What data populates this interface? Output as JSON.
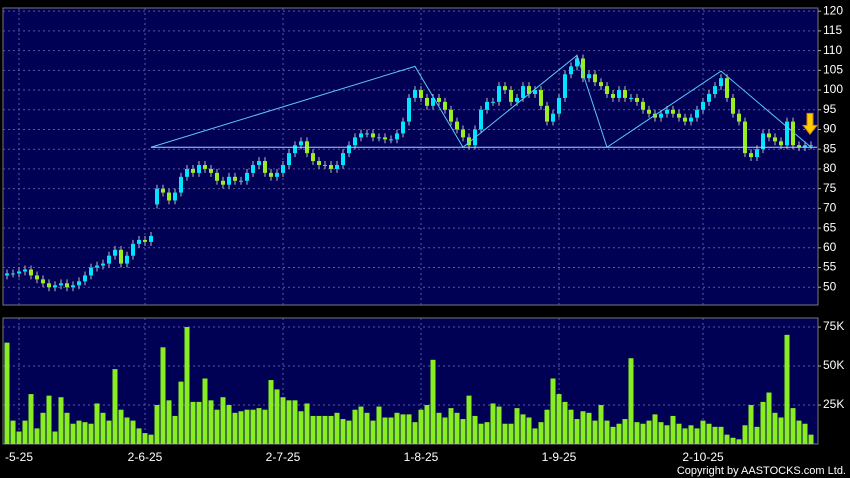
{
  "chart_data": [
    {
      "type": "candlestick",
      "open": [
        53,
        53.5,
        53.5,
        54,
        54.5,
        53,
        52,
        51,
        50,
        50.5,
        51,
        50,
        50.5,
        51.5,
        53,
        55,
        55.5,
        56,
        58,
        59.5,
        56,
        58,
        61,
        62,
        61.5,
        71,
        75,
        74,
        72,
        74,
        78,
        80,
        79,
        81,
        80,
        79,
        77,
        76,
        78,
        77,
        77,
        79,
        81,
        82,
        79,
        78,
        79,
        81,
        84,
        86,
        87,
        84,
        82,
        81,
        81,
        80,
        81,
        84,
        86,
        88,
        89,
        89,
        88,
        88,
        87.5,
        87.5,
        89,
        92,
        98,
        100,
        98,
        96,
        98,
        97,
        95,
        92,
        90,
        88,
        86,
        90,
        95,
        97,
        97,
        101,
        100,
        97,
        98,
        101,
        99,
        100,
        96,
        92,
        94,
        98,
        104,
        106,
        108,
        103,
        104,
        102,
        101,
        99,
        98,
        100,
        98,
        98,
        97,
        95,
        94,
        93,
        94,
        95,
        94,
        93,
        92,
        93,
        95,
        97,
        99,
        101,
        103,
        98,
        94,
        92,
        84,
        83,
        85,
        89,
        88,
        87,
        86,
        92,
        86,
        85.5,
        86
      ],
      "high": [
        54.5,
        54.5,
        55,
        55.5,
        55.5,
        54,
        53,
        52,
        51.5,
        52,
        52,
        51.5,
        52.5,
        54,
        56,
        56.5,
        57,
        59,
        60.5,
        60.5,
        59,
        62,
        63,
        63,
        64,
        76,
        76,
        75,
        75,
        79,
        81,
        81,
        82,
        82,
        81,
        80,
        78,
        79,
        79,
        78,
        80,
        82,
        83,
        83,
        80,
        80,
        82,
        85,
        87,
        88,
        88,
        85,
        83,
        82,
        82,
        82,
        85,
        87,
        89,
        90,
        90,
        90,
        89,
        89,
        88.5,
        90,
        93,
        99,
        101,
        101,
        99,
        99,
        99,
        98,
        96,
        93,
        91,
        89,
        91,
        96,
        98,
        98,
        102,
        102,
        101,
        99,
        102,
        102,
        101,
        101,
        97,
        95,
        99,
        105,
        107,
        109,
        109,
        105,
        105,
        103,
        102,
        100,
        101,
        101,
        99,
        99,
        98,
        96,
        95,
        95,
        96,
        96,
        95,
        94,
        94,
        96,
        98,
        100,
        102,
        104,
        104,
        99,
        95,
        93,
        85,
        86,
        90,
        90,
        89,
        88,
        93,
        93,
        87,
        87,
        87
      ],
      "low": [
        52,
        52.5,
        52.5,
        53,
        52,
        51,
        50,
        49,
        49,
        49.5,
        49,
        49,
        49.5,
        50.5,
        52,
        54,
        54.5,
        55,
        57,
        55,
        55,
        57,
        60,
        60.5,
        60.5,
        70,
        73,
        71,
        71,
        73,
        77,
        78,
        78,
        79,
        78,
        76,
        75,
        75,
        76,
        76,
        76,
        78,
        80,
        78,
        77,
        77,
        78,
        80,
        83,
        85,
        83,
        81,
        80,
        80,
        79,
        79,
        80,
        83,
        85,
        87,
        88,
        87,
        87,
        86.5,
        86.5,
        86.5,
        88,
        91,
        97,
        97,
        95,
        95,
        96,
        94,
        91,
        89,
        87,
        85,
        85,
        89,
        94,
        96,
        96,
        99,
        96,
        96,
        97,
        98,
        98,
        95,
        91,
        91,
        93,
        97,
        103,
        105,
        102,
        102,
        101,
        100,
        98,
        97,
        97,
        97,
        97,
        96,
        94,
        93,
        92,
        92,
        93,
        93,
        92,
        91,
        91,
        92,
        94,
        96,
        98,
        100,
        97,
        93,
        91,
        83,
        82,
        82,
        84,
        87,
        86,
        85,
        85,
        85,
        84.5,
        84.5,
        85
      ],
      "close": [
        53.5,
        53.5,
        54,
        54.5,
        53,
        52,
        51,
        50,
        50.5,
        51,
        50,
        50.5,
        51.5,
        53,
        55,
        55.5,
        56,
        58,
        59.5,
        56,
        58,
        61,
        62,
        61.5,
        63,
        75,
        74,
        72,
        74,
        78,
        80,
        79,
        81,
        80,
        79,
        77,
        76,
        78,
        77,
        77,
        79,
        81,
        82,
        79,
        78,
        79,
        81,
        84,
        86,
        87,
        84,
        82,
        81,
        81,
        80,
        81,
        84,
        86,
        88,
        89,
        89,
        88,
        88,
        87.5,
        87.5,
        89,
        92,
        98,
        100,
        98,
        96,
        98,
        97,
        95,
        92,
        90,
        88,
        86,
        90,
        95,
        97,
        97,
        101,
        100,
        97,
        98,
        101,
        99,
        100,
        96,
        92,
        94,
        98,
        104,
        106,
        108,
        103,
        104,
        102,
        101,
        99,
        98,
        100,
        98,
        98,
        97,
        95,
        94,
        93,
        94,
        95,
        94,
        93,
        92,
        93,
        95,
        97,
        99,
        101,
        103,
        98,
        94,
        92,
        84,
        83,
        85,
        89,
        88,
        87,
        86,
        92,
        86,
        85.5,
        86,
        86
      ],
      "up_color": "#00e5ff",
      "down_color": "#99ee22",
      "ylim": [
        45.5,
        120.8
      ],
      "yticks": [
        50,
        55,
        60,
        65,
        70,
        75,
        80,
        85,
        90,
        95,
        100,
        105,
        110,
        115,
        120
      ],
      "grid": true,
      "trendlines": [
        {
          "color": "#5bc8f5",
          "x": [
            24,
            68,
            76,
            95,
            100,
            119,
            134
          ],
          "y": [
            85.5,
            106,
            85.5,
            108.8,
            85.5,
            104.8,
            85.5
          ]
        },
        {
          "color": "#9fdcff",
          "x": [
            24,
            135
          ],
          "y": [
            85.5,
            85.5
          ]
        }
      ]
    },
    {
      "type": "bar",
      "categories": [
        null,
        null,
        "-5-25",
        null,
        null,
        null,
        null,
        null,
        null,
        null,
        null,
        null,
        null,
        null,
        null,
        null,
        null,
        null,
        null,
        null,
        null,
        null,
        null,
        "2-6-25",
        null,
        null,
        null,
        null,
        null,
        null,
        null,
        null,
        null,
        null,
        null,
        null,
        null,
        null,
        null,
        null,
        null,
        null,
        null,
        null,
        null,
        null,
        "2-7-25",
        null,
        null,
        null,
        null,
        null,
        null,
        null,
        null,
        null,
        null,
        null,
        null,
        null,
        null,
        null,
        null,
        null,
        null,
        null,
        null,
        null,
        null,
        "1-8-25",
        null,
        null,
        null,
        null,
        null,
        null,
        null,
        null,
        null,
        null,
        null,
        null,
        null,
        null,
        null,
        null,
        null,
        null,
        null,
        null,
        null,
        null,
        "1-9-25",
        null,
        null,
        null,
        null,
        null,
        null,
        null,
        null,
        null,
        null,
        null,
        null,
        null,
        null,
        null,
        null,
        null,
        null,
        null,
        null,
        null,
        null,
        null,
        "2-10-25",
        null,
        null,
        null,
        null,
        null,
        null,
        null,
        null,
        null,
        null,
        null,
        null,
        null,
        null,
        null,
        null,
        null,
        null
      ],
      "values": [
        65000,
        15000,
        8000,
        15000,
        32000,
        10000,
        20000,
        31000,
        8000,
        30000,
        20000,
        13000,
        15000,
        14000,
        13000,
        26000,
        20000,
        15000,
        48000,
        22000,
        17000,
        15000,
        10000,
        7000,
        6000,
        25000,
        62000,
        28000,
        18000,
        40000,
        75000,
        27000,
        27000,
        42000,
        28000,
        22000,
        30000,
        25000,
        20000,
        21000,
        22000,
        22000,
        23000,
        22000,
        41000,
        35000,
        30000,
        28000,
        28000,
        21000,
        26000,
        18000,
        18000,
        18000,
        18000,
        20000,
        16000,
        15000,
        22000,
        24000,
        20000,
        15000,
        24000,
        17000,
        17000,
        20000,
        19000,
        19000,
        14000,
        22000,
        25000,
        54000,
        20000,
        17000,
        23000,
        20000,
        16000,
        31000,
        18000,
        13000,
        14000,
        26000,
        24000,
        13000,
        13000,
        23000,
        19000,
        17000,
        10000,
        14000,
        22000,
        42000,
        32000,
        27000,
        22000,
        16000,
        21000,
        20000,
        15000,
        25000,
        15000,
        11000,
        13000,
        16000,
        55000,
        14000,
        13000,
        15000,
        19000,
        14000,
        12000,
        18000,
        13000,
        10000,
        12000,
        10000,
        15000,
        13000,
        11000,
        11000,
        6000,
        4000,
        3000,
        12000,
        25000,
        11000,
        27000,
        33000,
        20000,
        17000,
        70000,
        23000,
        15000,
        13000,
        6000
      ],
      "color": "#88ee22",
      "ylim": [
        0,
        80800
      ],
      "yticks": [
        {
          "value": 25000,
          "label": "25K"
        },
        {
          "value": 50000,
          "label": "50K"
        },
        {
          "value": 75000,
          "label": "75K"
        }
      ],
      "grid": true
    },
    {
      "copyright": "Copyright by AASTOCKS.com Ltd."
    }
  ]
}
